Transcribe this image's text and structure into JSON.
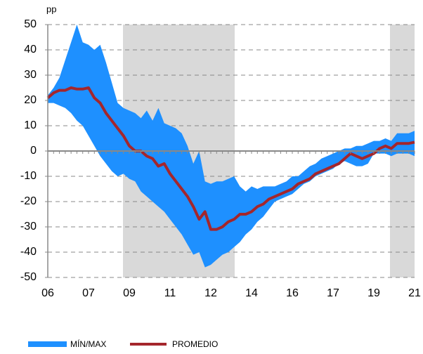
{
  "chart_data": {
    "type": "line",
    "unit_label": "pp",
    "categories": [
      "06",
      null,
      null,
      null,
      null,
      null,
      null,
      "07",
      null,
      null,
      null,
      null,
      null,
      null,
      "09",
      null,
      null,
      null,
      null,
      null,
      null,
      "11",
      null,
      null,
      null,
      null,
      null,
      null,
      "12",
      null,
      null,
      null,
      null,
      null,
      null,
      "14",
      null,
      null,
      null,
      null,
      null,
      null,
      "16",
      null,
      null,
      null,
      null,
      null,
      null,
      "17",
      null,
      null,
      null,
      null,
      null,
      null,
      "19",
      null,
      null,
      null,
      null,
      null,
      null,
      "21"
    ],
    "series": [
      {
        "name": "MÍN/MAX",
        "color": "#1e90ff",
        "kind": "band",
        "max": [
          22,
          25,
          29,
          36,
          43,
          50,
          43,
          42,
          40,
          42,
          35,
          27,
          19,
          17,
          16,
          15,
          13,
          16,
          12,
          17,
          11,
          10,
          9,
          7,
          2,
          -5,
          0,
          -12,
          -13,
          -12,
          -12,
          -11,
          -10,
          -14,
          -16,
          -14,
          -15,
          -14,
          -14,
          -14,
          -13,
          -12,
          -10,
          -10,
          -8,
          -6,
          -5,
          -3,
          -2,
          -1,
          0,
          1,
          1,
          2,
          2,
          3,
          4,
          4,
          5,
          4,
          7,
          7,
          7,
          8
        ],
        "min": [
          19,
          19,
          18,
          17,
          15,
          12,
          10,
          6,
          2,
          -2,
          -5,
          -8,
          -10,
          -9,
          -11,
          -12,
          -16,
          -18,
          -20,
          -22,
          -24,
          -27,
          -30,
          -33,
          -37,
          -41,
          -40,
          -46,
          -45,
          -43,
          -41,
          -40,
          -38,
          -36,
          -33,
          -31,
          -28,
          -26,
          -23,
          -20,
          -19,
          -18,
          -17,
          -15,
          -13,
          -12,
          -10,
          -9,
          -8,
          -7,
          -5,
          -4,
          -5,
          -6,
          -6,
          -5,
          -1,
          -1,
          -1,
          -2,
          -1,
          -1,
          -1,
          -2
        ]
      },
      {
        "name": "PROMEDIO",
        "color": "#a4262c",
        "kind": "line",
        "values": [
          21,
          23,
          24,
          24,
          25,
          24.5,
          24.5,
          25,
          21,
          19,
          15,
          12,
          9,
          6,
          2,
          0,
          0,
          -2,
          -3,
          -6,
          -5,
          -9,
          -12,
          -15,
          -18,
          -22,
          -27,
          -24,
          -31,
          -31,
          -30,
          -28,
          -27,
          -25,
          -25,
          -24,
          -22,
          -21,
          -19,
          -18,
          -17,
          -16,
          -15,
          -13,
          -12,
          -11,
          -9,
          -8,
          -7,
          -6,
          -5,
          -3,
          -1,
          -2,
          -3,
          -2,
          -1,
          1,
          2,
          1,
          3,
          3,
          3,
          3.5
        ]
      }
    ],
    "ylim": [
      -50,
      50
    ],
    "yticks": [
      -50,
      -40,
      -30,
      -20,
      -10,
      0,
      10,
      20,
      30,
      40,
      50
    ],
    "grid": true
  }
}
